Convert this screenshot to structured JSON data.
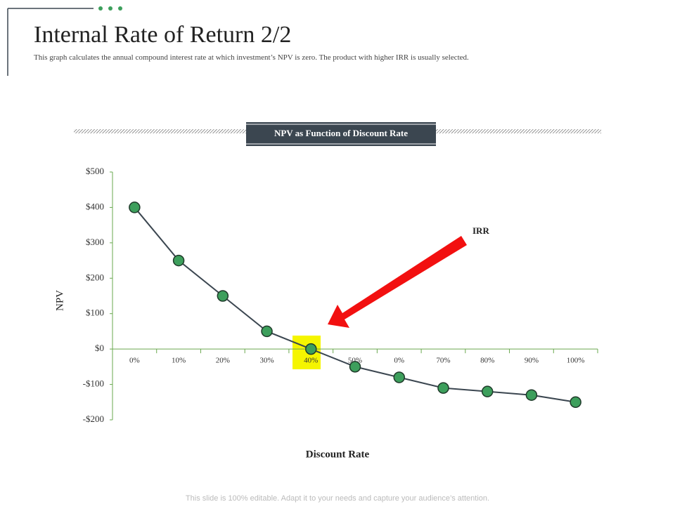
{
  "slide": {
    "title": "Internal Rate of Return 2/2",
    "subtitle": "This graph calculates the annual compound interest rate at which investment’s NPV is zero. The product with higher IRR is usually selected.",
    "footer": "This slide is 100% editable. Adapt it to your needs and capture your audience’s attention."
  },
  "chart_data": {
    "type": "line",
    "title": "NPV as Function of Discount Rate",
    "x_label": "Discount Rate",
    "y_label": "NPV",
    "annotation": "IRR",
    "categories": [
      "0%",
      "10%",
      "20%",
      "30%",
      "40%",
      "50%",
      "0%",
      "70%",
      "80%",
      "90%",
      "100%"
    ],
    "values": [
      400,
      250,
      150,
      50,
      0,
      -50,
      -80,
      -110,
      -120,
      -130,
      -150
    ],
    "color": "#3b4650",
    "marker_color": "#3d9f5c",
    "ylim": [
      -200,
      500
    ],
    "yticks": [
      {
        "value": -200,
        "label": "-$200"
      },
      {
        "value": -100,
        "label": "-$100"
      },
      {
        "value": 0,
        "label": "$0"
      },
      {
        "value": 100,
        "label": "$100"
      },
      {
        "value": 200,
        "label": "$200"
      },
      {
        "value": 300,
        "label": "$300"
      },
      {
        "value": 400,
        "label": "$400"
      },
      {
        "value": 500,
        "label": "$500"
      }
    ],
    "grid": false
  }
}
